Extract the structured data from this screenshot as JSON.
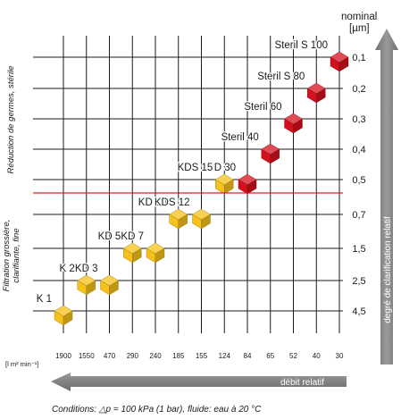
{
  "y_title_line1": "nominal",
  "y_title_line2": "[µm]",
  "x_unit_label": "[l m² min⁻¹]",
  "y_ticks": [
    "0,1",
    "0,2",
    "0,3",
    "0,4",
    "0,5",
    "0,7",
    "1,5",
    "2,5",
    "4,5"
  ],
  "x_ticks": [
    "1900",
    "1550",
    "470",
    "290",
    "240",
    "185",
    "155",
    "124",
    "84",
    "65",
    "52",
    "40",
    "30"
  ],
  "left_group_top": "Réduction de germes, stérile",
  "left_group_bottom_line1": "Filtration grossière,",
  "left_group_bottom_line2": "clarifiante, fine",
  "right_arrow_label": "degré de clarification relatif",
  "bottom_arrow_label": "débit relatif",
  "conditions": "Conditions: △p = 100 kPa (1 bar), fluide: eau à 20 °C",
  "colors": {
    "sterile_cube": "#d4101c",
    "coarse_cube": "#f5c11a",
    "divider_line": "#d81e2a",
    "arrow_gray": "#808080"
  },
  "chart_data": {
    "type": "scatter",
    "xlabel": "débit relatif",
    "ylabel": "nominal [µm]",
    "x_unit": "[l m² min⁻¹]",
    "x_categories": [
      "1900",
      "1550",
      "470",
      "290",
      "240",
      "185",
      "155",
      "124",
      "84",
      "65",
      "52",
      "40",
      "30"
    ],
    "y_categories": [
      "0,1",
      "0,2",
      "0,3",
      "0,4",
      "0,5",
      "0,7",
      "1,5",
      "2,5",
      "4,5"
    ],
    "grid": true,
    "series": [
      {
        "name": "Réduction de germes, stérile",
        "color": "#d4101c",
        "points": [
          {
            "label": "SD 30",
            "x": "84",
            "y": "0,5"
          },
          {
            "label": "Steril 40",
            "x": "65",
            "y": "0,4"
          },
          {
            "label": "Steril 60",
            "x": "52",
            "y": "0,3"
          },
          {
            "label": "Steril S 80",
            "x": "40",
            "y": "0,2"
          },
          {
            "label": "Steril S 100",
            "x": "30",
            "y": "0,1"
          }
        ]
      },
      {
        "name": "Filtration grossière, clarifiante, fine",
        "color": "#f5c11a",
        "points": [
          {
            "label": "K 1",
            "x": "1900",
            "y": "4,5"
          },
          {
            "label": "K 2",
            "x": "1550",
            "y": "2,5"
          },
          {
            "label": "KD 3",
            "x": "470",
            "y": "2,5"
          },
          {
            "label": "KD 5",
            "x": "290",
            "y": "1,5"
          },
          {
            "label": "KD 7",
            "x": "240",
            "y": "1,5"
          },
          {
            "label": "KD 10",
            "x": "185",
            "y": "0,7"
          },
          {
            "label": "KDS 12",
            "x": "155",
            "y": "0,7"
          },
          {
            "label": "KDS 15",
            "x": "124",
            "y": "0,5"
          }
        ]
      }
    ]
  }
}
